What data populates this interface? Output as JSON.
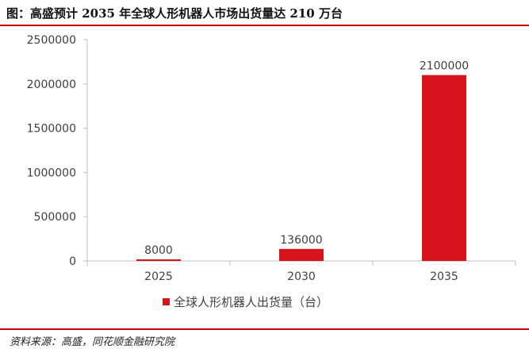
{
  "header": {
    "title": "图：高盛预计 2035 年全球人形机器人市场出货量达 210 万台"
  },
  "footer": {
    "source": "资料来源：高盛，同花顺金融研究院"
  },
  "colors": {
    "bar": "#d7141b",
    "rule": "#c00000",
    "axis": "#bfbfbf",
    "text": "#404040"
  },
  "chart_data": {
    "type": "bar",
    "categories": [
      "2025",
      "2030",
      "2035"
    ],
    "series": [
      {
        "name": "全球人形机器人出货量（台）",
        "values": [
          8000,
          136000,
          2100000
        ],
        "labels": [
          "8000",
          "136000",
          "2100000"
        ]
      }
    ],
    "yticks": [
      "0",
      "500000",
      "1000000",
      "1500000",
      "2000000",
      "2500000"
    ],
    "ylim": [
      0,
      2500000
    ],
    "legend_position": "bottom",
    "grid": false
  }
}
